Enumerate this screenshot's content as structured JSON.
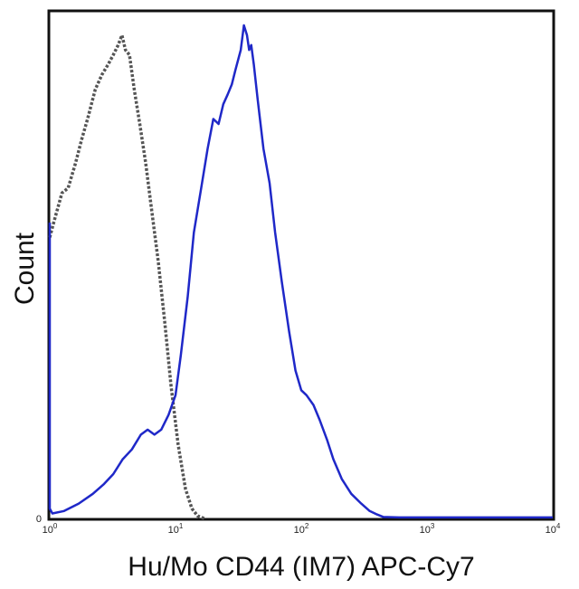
{
  "chart_data": {
    "type": "line",
    "title": "",
    "xlabel": "Hu/Mo CD44 (IM7) APC-Cy7",
    "ylabel": "Count",
    "x_scale": "log",
    "xlim": [
      1,
      10000
    ],
    "ylim": [
      0,
      100
    ],
    "y_ticks": [
      {
        "value": 0,
        "label": "0"
      }
    ],
    "x_ticks": [
      {
        "value": 1,
        "base": "10",
        "exp": "0"
      },
      {
        "value": 10,
        "base": "10",
        "exp": "1"
      },
      {
        "value": 100,
        "base": "10",
        "exp": "2"
      },
      {
        "value": 1000,
        "base": "10",
        "exp": "3"
      },
      {
        "value": 10000,
        "base": "10",
        "exp": "4"
      }
    ],
    "grid": false,
    "legend": "none",
    "series": [
      {
        "style": "dotted",
        "color": "#555555",
        "x": [
          1.0,
          1.05,
          1.13,
          1.25,
          1.4,
          1.6,
          1.8,
          2.0,
          2.3,
          2.6,
          2.9,
          3.2,
          3.5,
          3.75,
          4.0,
          4.3,
          4.7,
          5.2,
          5.8,
          6.5,
          7.3,
          8.2,
          9.2,
          10.5,
          12.0,
          13.5,
          15.0,
          17.0
        ],
        "y": [
          57,
          59,
          62,
          66,
          67,
          72,
          77,
          81,
          87,
          90,
          92,
          94,
          96,
          98,
          95,
          94,
          87,
          80,
          72,
          62,
          52,
          40,
          27,
          15,
          6,
          2,
          0.5,
          0
        ]
      },
      {
        "style": "solid",
        "color": "#1f28c8",
        "x": [
          0.88,
          0.92,
          0.97,
          1.05,
          1.3,
          1.7,
          2.2,
          2.7,
          3.2,
          3.8,
          4.5,
          5.3,
          6.0,
          6.8,
          7.7,
          8.8,
          10.0,
          11.0,
          12.5,
          14.0,
          16.0,
          18.0,
          20.0,
          22.0,
          24.0,
          26.0,
          28.0,
          30.0,
          33.0,
          35.0,
          37.0,
          38.5,
          40.0,
          42.0,
          45.0,
          50.0,
          56.0,
          62.0,
          70.0,
          80.0,
          90.0,
          100.0,
          110.0,
          125.0,
          140.0,
          160.0,
          180.0,
          210.0,
          250.0,
          300.0,
          350.0,
          400.0,
          450.0,
          600.0,
          1000.0,
          3000.0,
          10000.0
        ],
        "y": [
          60,
          15,
          2,
          1,
          1.5,
          3,
          5,
          7,
          9,
          12,
          14,
          17,
          18,
          17,
          18,
          21,
          25,
          33,
          45,
          58,
          67,
          75,
          81,
          80,
          84,
          86,
          88,
          91,
          95,
          100,
          98,
          95,
          96,
          92,
          85,
          75,
          68,
          58,
          48,
          38,
          30,
          26,
          25,
          23,
          20,
          16,
          12,
          8,
          5,
          3,
          1.5,
          0.8,
          0.3,
          0.2,
          0.2,
          0.2,
          0.2
        ]
      }
    ]
  }
}
